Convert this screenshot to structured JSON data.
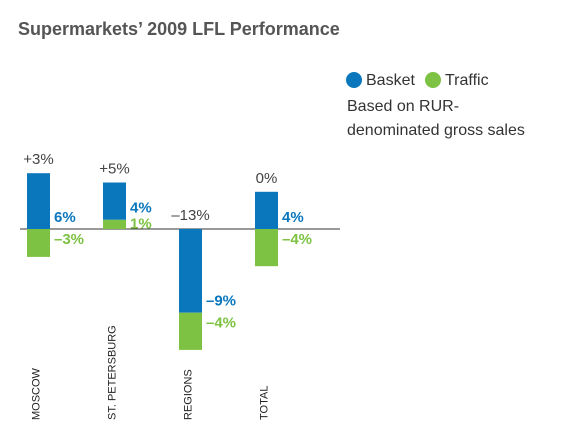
{
  "chart_data": {
    "type": "diverging-stacked-bar",
    "title": "Supermarkets’ 2009 LFL Performance",
    "note": "Based on RUR-denominated gross sales",
    "categories": [
      "MOSCOW",
      "ST. PETERSBURG",
      "REGIONS",
      "TOTAL"
    ],
    "totals": [
      3,
      5,
      -13,
      0
    ],
    "total_labels": [
      "+3%",
      "+5%",
      "–13%",
      "0%"
    ],
    "series": [
      {
        "name": "Basket",
        "color": "#0a77bd",
        "values": [
          6,
          4,
          -9,
          4
        ],
        "value_labels": [
          "6%",
          "4%",
          "–9%",
          "4%"
        ]
      },
      {
        "name": "Traffic",
        "color": "#7dc242",
        "values": [
          -3,
          1,
          -4,
          -4
        ],
        "value_labels": [
          "–3%",
          "1%",
          "–4%",
          "–4%"
        ]
      }
    ]
  }
}
